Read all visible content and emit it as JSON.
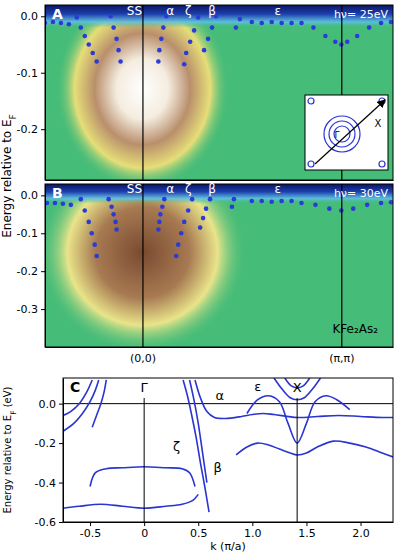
{
  "chart_data": [
    {
      "type": "scatter",
      "title": "A",
      "subtitle": "hν= 25eV",
      "ylabel": "Energy relative to EF",
      "xlim": [
        -0.49,
        1.26
      ],
      "xticks": [
        0,
        1
      ],
      "ylim": [
        -0.29,
        0.02
      ],
      "yticks": [
        {
          "value": 0,
          "label": "0.0"
        },
        -0.1,
        -0.2
      ],
      "tick_labels": "y",
      "color": "#2b3bd6",
      "marker": "circle",
      "series": [
        {
          "x": [
            -0.49,
            -0.45,
            -0.41,
            -0.37
          ],
          "values": [
            -0.012,
            -0.01,
            -0.012,
            -0.014
          ]
        },
        {
          "x": [
            -0.33,
            -0.31,
            -0.29,
            -0.27,
            -0.25,
            -0.23
          ],
          "values": [
            -0.002,
            -0.02,
            -0.035,
            -0.05,
            -0.065,
            -0.08
          ]
        },
        {
          "x": [
            -0.16,
            -0.145,
            -0.13,
            -0.12,
            -0.11
          ],
          "values": [
            0.0,
            -0.02,
            -0.04,
            -0.06,
            -0.08
          ]
        },
        {
          "x": [
            0.12,
            0.105,
            0.095,
            0.085,
            0.08
          ],
          "values": [
            0.0,
            -0.02,
            -0.04,
            -0.06,
            -0.08
          ]
        },
        {
          "x": [
            0.28,
            0.26,
            0.24,
            0.22,
            0.21
          ],
          "values": [
            -0.002,
            -0.025,
            -0.045,
            -0.065,
            -0.085
          ]
        },
        {
          "x": [
            0.37,
            0.35,
            0.33,
            0.31
          ],
          "values": [
            0.0,
            -0.02,
            -0.04,
            -0.06
          ]
        },
        {
          "x": [
            0.49,
            0.47
          ],
          "values": [
            -0.005,
            -0.02
          ]
        },
        {
          "x": [
            0.55,
            0.6,
            0.65,
            0.7,
            0.75
          ],
          "values": [
            -0.01,
            -0.012,
            -0.01,
            -0.012,
            -0.012
          ]
        },
        {
          "x": [
            0.8,
            0.86,
            0.92,
            0.97,
            1.0,
            1.03,
            1.08,
            1.14,
            1.2,
            1.25
          ],
          "values": [
            -0.012,
            -0.02,
            -0.035,
            -0.045,
            -0.05,
            -0.045,
            -0.035,
            -0.02,
            -0.012,
            -0.01
          ]
        }
      ],
      "annotations": [
        {
          "text": "SS",
          "x": -0.04,
          "y": 0.008
        },
        {
          "text": "α",
          "x": 0.14,
          "y": 0.008
        },
        {
          "text": "ζ",
          "x": 0.23,
          "y": 0.008
        },
        {
          "text": "β",
          "x": 0.35,
          "y": 0.008
        },
        {
          "text": "ε",
          "x": 0.68,
          "y": 0.008
        }
      ],
      "inset_labels": [
        "Γ",
        "X"
      ]
    },
    {
      "type": "scatter",
      "title": "B",
      "subtitle": "hν= 30eV",
      "xlim": [
        -0.49,
        1.26
      ],
      "xticks": [
        {
          "value": 0,
          "label": "(0,0)"
        },
        {
          "value": 1,
          "label": "(π,π)"
        }
      ],
      "ylim": [
        -0.4,
        0.03
      ],
      "yticks": [
        {
          "value": 0,
          "label": "0.0"
        },
        -0.1,
        -0.2,
        -0.3
      ],
      "color": "#2b3bd6",
      "marker": "circle",
      "series": [
        {
          "x": [
            -0.48,
            -0.44,
            -0.4,
            -0.36
          ],
          "values": [
            -0.02,
            -0.02,
            -0.022,
            -0.025
          ]
        },
        {
          "x": [
            -0.31,
            -0.29,
            -0.27,
            -0.255,
            -0.24,
            -0.23
          ],
          "values": [
            -0.01,
            -0.04,
            -0.07,
            -0.1,
            -0.13,
            -0.16
          ]
        },
        {
          "x": [
            -0.17,
            -0.155,
            -0.145,
            -0.135,
            -0.13
          ],
          "values": [
            -0.01,
            -0.03,
            -0.05,
            -0.07,
            -0.09
          ]
        },
        {
          "x": [
            0.11,
            0.1,
            0.09,
            0.085,
            0.08
          ],
          "values": [
            -0.01,
            -0.03,
            -0.05,
            -0.07,
            -0.09
          ]
        },
        {
          "x": [
            0.25,
            0.23,
            0.21,
            0.195,
            0.18,
            0.17
          ],
          "values": [
            -0.01,
            -0.04,
            -0.07,
            -0.1,
            -0.13,
            -0.16
          ]
        },
        {
          "x": [
            0.34,
            0.32,
            0.305,
            0.29
          ],
          "values": [
            -0.01,
            -0.035,
            -0.06,
            -0.085
          ]
        },
        {
          "x": [
            0.46,
            0.45
          ],
          "values": [
            -0.01,
            -0.03
          ]
        },
        {
          "x": [
            0.55,
            0.6,
            0.65,
            0.7,
            0.75
          ],
          "values": [
            -0.015,
            -0.015,
            -0.017,
            -0.015,
            -0.015
          ]
        },
        {
          "x": [
            0.8,
            0.87,
            0.94,
            1.0,
            1.06,
            1.13,
            1.2,
            1.25
          ],
          "values": [
            -0.02,
            -0.025,
            -0.035,
            -0.04,
            -0.035,
            -0.025,
            -0.02,
            -0.018
          ]
        }
      ],
      "annotations": [
        {
          "text": "SS",
          "x": -0.04,
          "y": 0.016
        },
        {
          "text": "α",
          "x": 0.14,
          "y": 0.016
        },
        {
          "text": "ζ",
          "x": 0.23,
          "y": 0.016
        },
        {
          "text": "β",
          "x": 0.35,
          "y": 0.016
        },
        {
          "text": "ε",
          "x": 0.68,
          "y": 0.016
        },
        {
          "text": "KFe₂As₂",
          "x": 1.07,
          "y": -0.355
        }
      ]
    },
    {
      "type": "line",
      "title": "C",
      "xlabel": "k (π/a)",
      "ylabel": "Energy relative to EF (eV)",
      "xlim": [
        -0.75,
        2.3
      ],
      "xticks": [
        -0.5,
        0,
        0.5,
        {
          "value": 1,
          "label": "1.0"
        },
        1.5,
        {
          "value": 2,
          "label": "2.0"
        }
      ],
      "ylim": [
        -0.6,
        0.13
      ],
      "yticks": [
        {
          "value": 0,
          "label": "0.0"
        },
        -0.2,
        -0.4,
        -0.6
      ],
      "color": "#2a34d0",
      "series": [
        {
          "x": [
            -0.75,
            -0.68,
            -0.6,
            -0.53,
            -0.48
          ],
          "values": [
            -0.06,
            -0.04,
            0.0,
            0.06,
            0.12
          ]
        },
        {
          "x": [
            -0.75,
            -0.65,
            -0.57,
            -0.5,
            -0.45,
            -0.42
          ],
          "values": [
            -0.14,
            -0.1,
            -0.05,
            0.01,
            0.07,
            0.12
          ]
        },
        {
          "x": [
            -0.48,
            -0.44,
            -0.4,
            -0.37,
            -0.35
          ],
          "values": [
            -0.12,
            -0.06,
            0.0,
            0.06,
            0.12
          ]
        },
        {
          "x": [
            0.36,
            0.4,
            0.44,
            0.48,
            0.52,
            0.56,
            0.6
          ],
          "values": [
            0.12,
            0.04,
            -0.06,
            -0.17,
            -0.3,
            -0.42,
            -0.55
          ]
        },
        {
          "x": [
            0.42,
            0.46,
            0.5,
            0.54,
            0.58
          ],
          "values": [
            0.12,
            0.02,
            -0.1,
            -0.25,
            -0.4
          ]
        },
        {
          "x": [
            0.47,
            0.52,
            0.58,
            0.65,
            0.75,
            0.9,
            1.0,
            1.1,
            1.2,
            1.414,
            1.6,
            1.8,
            2.0,
            2.2,
            2.3
          ],
          "values": [
            0.12,
            0.03,
            -0.04,
            -0.07,
            -0.075,
            -0.065,
            -0.055,
            -0.05,
            -0.055,
            -0.07,
            -0.065,
            -0.06,
            -0.065,
            -0.07,
            -0.07
          ]
        },
        {
          "x": [
            0.95,
            1.05,
            1.15,
            1.25,
            1.33,
            1.414,
            1.5,
            1.58,
            1.68,
            1.78,
            1.9
          ],
          "values": [
            -0.05,
            0.02,
            0.04,
            0.01,
            -0.1,
            -0.2,
            -0.1,
            0.01,
            0.04,
            0.02,
            -0.03
          ]
        },
        {
          "x": [
            1.2,
            1.28,
            1.35,
            1.414,
            1.48,
            1.55,
            1.63
          ],
          "values": [
            0.13,
            0.07,
            0.03,
            0.02,
            0.03,
            0.07,
            0.13
          ]
        },
        {
          "x": [
            1.3,
            1.36,
            1.414,
            1.47,
            1.53
          ],
          "values": [
            0.13,
            0.09,
            0.08,
            0.09,
            0.13
          ]
        },
        {
          "x": [
            0.85,
            0.95,
            1.05,
            1.15,
            1.25,
            1.35,
            1.414,
            1.5,
            1.6,
            1.75,
            1.9,
            2.05,
            2.2,
            2.3
          ],
          "values": [
            -0.26,
            -0.22,
            -0.2,
            -0.21,
            -0.23,
            -0.25,
            -0.26,
            -0.25,
            -0.22,
            -0.19,
            -0.2,
            -0.22,
            -0.25,
            -0.27
          ]
        },
        {
          "x": [
            -0.5,
            -0.45,
            -0.35,
            -0.2,
            0,
            0.2,
            0.35,
            0.42,
            0.47
          ],
          "values": [
            -0.42,
            -0.35,
            -0.33,
            -0.325,
            -0.32,
            -0.325,
            -0.33,
            -0.35,
            -0.42
          ]
        },
        {
          "x": [
            -0.75,
            -0.6,
            -0.4,
            -0.2,
            0,
            0.2,
            0.35,
            0.45,
            0.5
          ],
          "values": [
            -0.53,
            -0.52,
            -0.51,
            -0.52,
            -0.53,
            -0.52,
            -0.51,
            -0.49,
            -0.46
          ]
        }
      ],
      "annotations": [
        {
          "text": "Γ",
          "x": 0
        },
        {
          "text": "X",
          "x": 1.414
        },
        {
          "text": "α",
          "x": 0.7,
          "y": 0.035
        },
        {
          "text": "ε",
          "x": 1.05,
          "y": 0.08
        },
        {
          "text": "ζ",
          "x": 0.3,
          "y": -0.22
        },
        {
          "text": "β",
          "x": 0.68,
          "y": -0.33
        }
      ]
    }
  ]
}
